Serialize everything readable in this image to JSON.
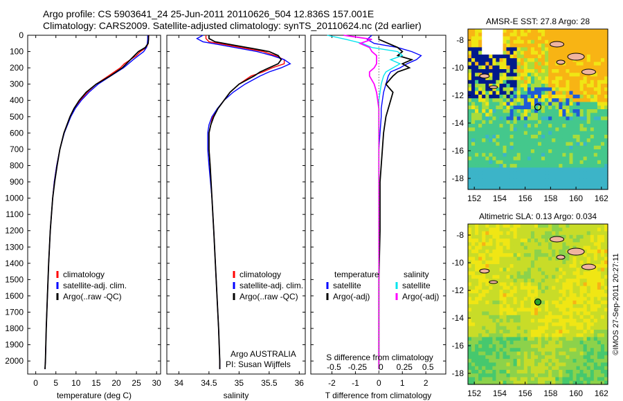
{
  "header": {
    "line1": "Argo profile: CS 5903641_24 25-Jun-2011 20110626_504 12.836S 157.001E",
    "line2": "Climatology: CARS2009. Satellite-adjusted climatology: synTS_20110624.nc (2d earlier)"
  },
  "colors": {
    "climatology": "#ff0000",
    "satellite": "#0000ff",
    "argo": "#000000",
    "argo_salinity_diff": "#ff00ff",
    "sat_salinity_diff": "#00e5ee"
  },
  "depth_axis": {
    "ticks": [
      0,
      100,
      200,
      300,
      400,
      500,
      600,
      700,
      800,
      900,
      1000,
      1100,
      1200,
      1300,
      1400,
      1500,
      1600,
      1700,
      1800,
      1900,
      2000
    ]
  },
  "chart_data": [
    {
      "id": "temperature",
      "type": "line",
      "xlabel": "temperature (deg C)",
      "xlim": [
        -2,
        31
      ],
      "ylim": [
        0,
        2080
      ],
      "xticks": [
        0,
        5,
        10,
        15,
        20,
        25,
        30
      ],
      "legend": [
        "climatology",
        "satellite-adj. clim.",
        "Argo(..raw -QC)"
      ],
      "depth": [
        0,
        25,
        50,
        75,
        100,
        125,
        150,
        175,
        200,
        250,
        300,
        350,
        400,
        450,
        500,
        600,
        700,
        800,
        900,
        1000,
        1200,
        1400,
        1600,
        1800,
        2000,
        2050
      ],
      "series": [
        {
          "name": "climatology",
          "values": [
            28.1,
            28.0,
            27.9,
            27.5,
            26.0,
            25.0,
            23.5,
            22.0,
            21.0,
            18.0,
            15.0,
            12.8,
            11.0,
            9.5,
            8.5,
            7.0,
            6.0,
            5.2,
            4.6,
            4.2,
            3.6,
            3.2,
            2.9,
            2.6,
            2.4,
            2.3
          ]
        },
        {
          "name": "satellite-adj. clim.",
          "values": [
            27.8,
            27.8,
            27.7,
            27.5,
            26.8,
            25.5,
            24.2,
            23.0,
            21.8,
            18.6,
            15.5,
            13.2,
            11.3,
            9.8,
            8.7,
            7.1,
            6.0,
            5.2,
            4.6,
            4.2,
            3.6,
            3.2,
            2.9,
            2.6,
            2.4,
            2.3
          ]
        },
        {
          "name": "Argo(..raw -QC)",
          "values": [
            28.0,
            28.0,
            27.9,
            27.2,
            25.5,
            24.5,
            23.5,
            22.5,
            21.5,
            18.5,
            15.0,
            12.5,
            10.8,
            9.5,
            8.5,
            7.0,
            6.0,
            5.3,
            4.7,
            4.2,
            3.6,
            3.2,
            2.9,
            2.6,
            2.4,
            2.3
          ]
        }
      ]
    },
    {
      "id": "salinity",
      "type": "line",
      "xlabel": "salinity",
      "xlim": [
        33.8,
        36.1
      ],
      "ylim": [
        0,
        2080
      ],
      "xticks": [
        34,
        34.5,
        35,
        35.5,
        36
      ],
      "legend": [
        "climatology",
        "satellite-adj. clim.",
        "Argo(..raw -QC)"
      ],
      "annotation": [
        "Argo AUSTRALIA",
        "PI: Susan Wijffels"
      ],
      "depth": [
        0,
        20,
        40,
        60,
        80,
        100,
        125,
        150,
        175,
        200,
        225,
        250,
        300,
        350,
        400,
        450,
        500,
        550,
        600,
        700,
        800,
        1000,
        1200,
        1500,
        1800,
        2000,
        2050
      ],
      "series": [
        {
          "name": "climatology",
          "values": [
            34.45,
            34.45,
            34.5,
            34.8,
            35.1,
            35.4,
            35.6,
            35.75,
            35.75,
            35.55,
            35.4,
            35.2,
            35.0,
            34.85,
            34.75,
            34.65,
            34.56,
            34.53,
            34.5,
            34.5,
            34.52,
            34.55,
            34.58,
            34.62,
            34.66,
            34.68,
            34.68
          ]
        },
        {
          "name": "satellite-adj. clim.",
          "values": [
            34.4,
            34.3,
            34.4,
            34.7,
            35.0,
            35.3,
            35.55,
            35.75,
            35.85,
            35.7,
            35.5,
            35.35,
            35.1,
            34.9,
            34.75,
            34.64,
            34.55,
            34.5,
            34.48,
            34.48,
            34.5,
            34.55,
            34.58,
            34.62,
            34.66,
            34.68,
            34.68
          ]
        },
        {
          "name": "Argo(..raw -QC)",
          "values": [
            34.5,
            34.5,
            34.6,
            34.9,
            35.2,
            35.5,
            35.65,
            35.7,
            35.65,
            35.5,
            35.35,
            35.25,
            35.0,
            34.85,
            34.75,
            34.65,
            34.58,
            34.53,
            34.5,
            34.5,
            34.52,
            34.55,
            34.58,
            34.62,
            34.66,
            34.68,
            34.68
          ]
        }
      ]
    },
    {
      "id": "difference",
      "type": "line",
      "xlabel": "T difference from climatology",
      "xlabel_top": "S difference from climatology",
      "xlim": [
        -2.9,
        2.85
      ],
      "ylim": [
        0,
        2080
      ],
      "xticks": [
        -2,
        -1,
        0,
        1,
        2
      ],
      "xticks_top": [
        "-0.5",
        "-0.25",
        "0",
        "0.25",
        "0.5"
      ],
      "legend_temperature": {
        "title": "temperature",
        "items": [
          "satellite",
          "Argo(-adj)"
        ]
      },
      "legend_salinity": {
        "title": "salinity",
        "items": [
          "satellite",
          "Argo(-adj)"
        ]
      },
      "depth": [
        0,
        25,
        50,
        75,
        100,
        125,
        150,
        175,
        200,
        225,
        250,
        300,
        350,
        400,
        450,
        500,
        600,
        700,
        800,
        900,
        1000,
        1200,
        1500,
        2000,
        2050
      ],
      "series": [
        {
          "name": "temperature satellite",
          "values": [
            -0.3,
            -0.5,
            -0.2,
            0.8,
            1.4,
            1.8,
            1.6,
            1.2,
            0.9,
            0.5,
            0.4,
            0.3,
            0.2,
            0.15,
            0.1,
            0.1,
            0.05,
            0,
            0,
            0,
            0,
            0,
            0,
            0,
            0
          ]
        },
        {
          "name": "temperature Argo(-adj)",
          "values": [
            0,
            0,
            0.4,
            0.8,
            1.0,
            0.8,
            1.4,
            1.0,
            1.3,
            0.8,
            0.6,
            0.3,
            0.6,
            0.5,
            0.4,
            0.3,
            0.2,
            0.15,
            0.1,
            0.05,
            0.05,
            0.05,
            0,
            0,
            0
          ]
        },
        {
          "name": "salinity satellite",
          "values": [
            -2.2,
            -1.4,
            -0.7,
            -0.3,
            0.8,
            1.0,
            0.5,
            0.9,
            0.6,
            0.3,
            0.2,
            0.1,
            0.05,
            0,
            0,
            0,
            0,
            0,
            0,
            0,
            0,
            0,
            0,
            0,
            0
          ]
        },
        {
          "name": "salinity Argo(-adj)",
          "values": [
            -1.5,
            -0.3,
            -0.8,
            -0.4,
            -0.3,
            -0.1,
            -0.1,
            -0.1,
            -0.2,
            -0.4,
            -0.4,
            -0.2,
            -0.1,
            -0.05,
            0,
            0,
            0,
            0,
            0,
            0,
            0,
            0,
            0,
            0,
            0
          ]
        }
      ]
    }
  ],
  "maps": [
    {
      "id": "sst",
      "type": "heatmap",
      "title": "AMSR-E SST: 27.8 Argo: 28",
      "xticks": [
        152,
        154,
        156,
        158,
        160,
        162
      ],
      "yticks": [
        -8,
        -10,
        -12,
        -14,
        -16,
        -18
      ],
      "xlim": [
        151.5,
        162.5
      ],
      "ylim": [
        -18.8,
        -7.2
      ],
      "argo_lon": 157.0,
      "argo_lat": -12.84
    },
    {
      "id": "sla",
      "type": "heatmap",
      "title": "Altimetric SLA: 0.13 Argo: 0.034",
      "xticks": [
        152,
        154,
        156,
        158,
        160,
        162
      ],
      "yticks": [
        -8,
        -10,
        -12,
        -14,
        -16,
        -18
      ],
      "xlim": [
        151.5,
        162.5
      ],
      "ylim": [
        -18.8,
        -7.2
      ],
      "argo_lon": 157.0,
      "argo_lat": -12.84
    }
  ],
  "credit": "©IMOS 27-Sep-2011 20:27:11"
}
